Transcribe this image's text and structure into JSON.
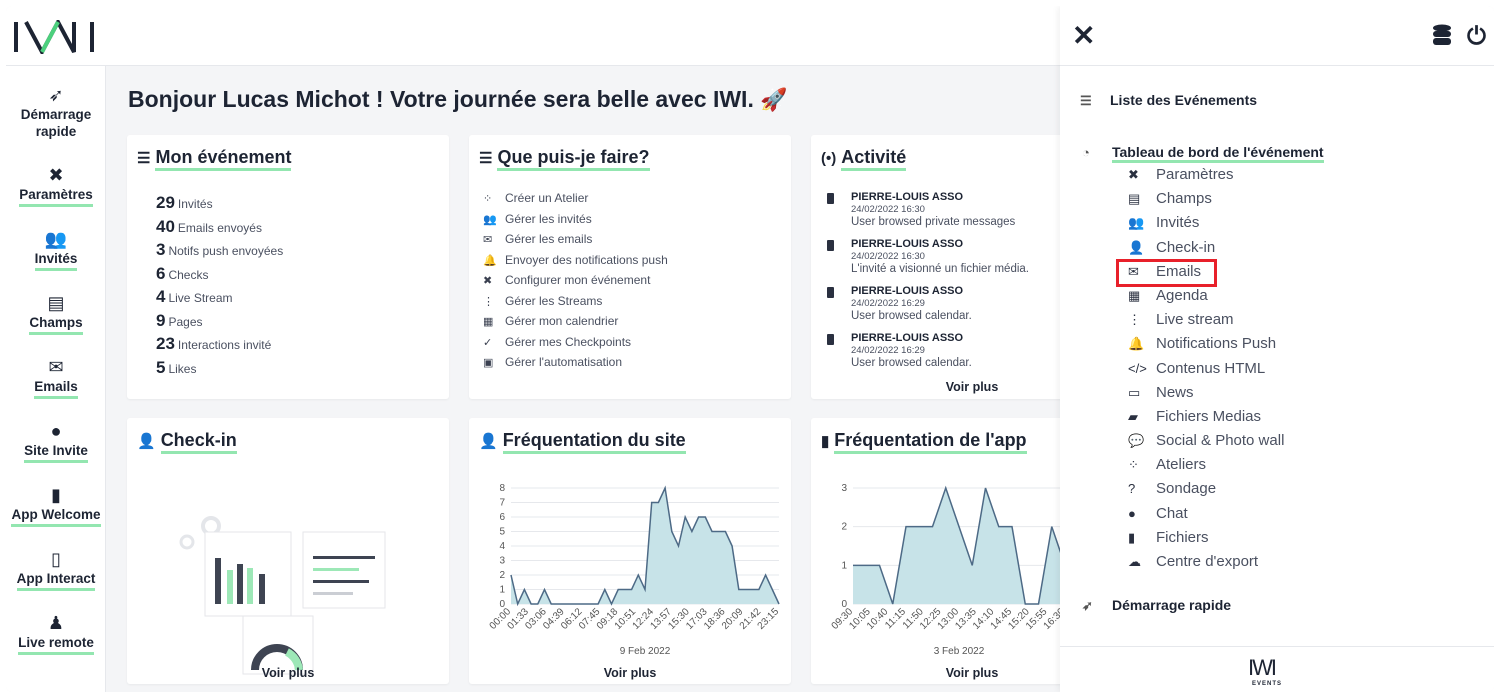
{
  "app": {
    "logo": "IWI",
    "footer_logo": "IWI",
    "footer_sub": "EVENTS"
  },
  "sidebar": {
    "items": [
      {
        "label": "Démarrage rapide",
        "icon": "rocket-icon"
      },
      {
        "label": "Paramètres",
        "icon": "tools-icon"
      },
      {
        "label": "Invités",
        "icon": "users-icon"
      },
      {
        "label": "Champs",
        "icon": "form-icon"
      },
      {
        "label": "Emails",
        "icon": "envelope-icon"
      },
      {
        "label": "Site Invite",
        "icon": "globe-icon"
      },
      {
        "label": "App Welcome",
        "icon": "kiosk-icon"
      },
      {
        "label": "App Interact",
        "icon": "mobile-icon"
      },
      {
        "label": "Live remote",
        "icon": "joystick-icon"
      }
    ]
  },
  "greeting": "Bonjour Lucas Michot ! Votre journée sera belle avec IWI.",
  "mon_evenement": {
    "title": "Mon événement",
    "stats": [
      {
        "n": "29",
        "label": "Invités"
      },
      {
        "n": "40",
        "label": "Emails envoyés"
      },
      {
        "n": "3",
        "label": "Notifs push envoyées"
      },
      {
        "n": "6",
        "label": "Checks"
      },
      {
        "n": "4",
        "label": "Live Stream"
      },
      {
        "n": "9",
        "label": "Pages"
      },
      {
        "n": "23",
        "label": "Interactions invité"
      },
      {
        "n": "5",
        "label": "Likes"
      }
    ]
  },
  "que_faire": {
    "title": "Que puis-je faire?",
    "items": [
      "Créer un Atelier",
      "Gérer les invités",
      "Gérer les emails",
      "Envoyer des notifications push",
      "Configurer mon événement",
      "Gérer les Streams",
      "Gérer mon calendrier",
      "Gérer mes Checkpoints",
      "Gérer l'automatisation"
    ]
  },
  "activite": {
    "title": "Activité",
    "items": [
      {
        "name": "PIERRE-LOUIS ASSO",
        "date": "24/02/2022 16:30",
        "msg": "User browsed private messages"
      },
      {
        "name": "PIERRE-LOUIS ASSO",
        "date": "24/02/2022 16:30",
        "msg": "L'invité a visionné un fichier média."
      },
      {
        "name": "PIERRE-LOUIS ASSO",
        "date": "24/02/2022 16:29",
        "msg": "User browsed calendar."
      },
      {
        "name": "PIERRE-LOUIS ASSO",
        "date": "24/02/2022 16:29",
        "msg": "User browsed calendar."
      }
    ],
    "more": "Voir plus"
  },
  "checkin": {
    "title": "Check-in",
    "more": "Voir plus"
  },
  "site": {
    "title": "Fréquentation du site",
    "more": "Voir plus",
    "date_label": "9 Feb 2022"
  },
  "app_card": {
    "title": "Fréquentation de l'app",
    "more": "Voir plus",
    "date_label": "3 Feb 2022"
  },
  "panel": {
    "list_title": "Liste des Evénements",
    "dashboard_title": "Tableau de bord de l'événement",
    "items": [
      {
        "label": "Paramètres",
        "icon": "tools-icon"
      },
      {
        "label": "Champs",
        "icon": "form-icon"
      },
      {
        "label": "Invités",
        "icon": "users-icon"
      },
      {
        "label": "Check-in",
        "icon": "user-check-icon"
      },
      {
        "label": "Emails",
        "icon": "envelope-icon",
        "highlighted": true
      },
      {
        "label": "Agenda",
        "icon": "calendar-icon"
      },
      {
        "label": "Live stream",
        "icon": "waveform-icon"
      },
      {
        "label": "Notifications Push",
        "icon": "bell-icon"
      },
      {
        "label": "Contenus HTML",
        "icon": "code-icon"
      },
      {
        "label": "News",
        "icon": "newspaper-icon"
      },
      {
        "label": "Fichiers Medias",
        "icon": "folder-icon"
      },
      {
        "label": "Social & Photo wall",
        "icon": "chat-icon"
      },
      {
        "label": "Ateliers",
        "icon": "share-icon"
      },
      {
        "label": "Sondage",
        "icon": "question-icon"
      },
      {
        "label": "Chat",
        "icon": "comment-icon"
      },
      {
        "label": "Fichiers",
        "icon": "file-icon"
      },
      {
        "label": "Centre d'export",
        "icon": "cloud-download-icon"
      }
    ],
    "quick_start": "Démarrage rapide"
  },
  "chart_data": [
    {
      "type": "area",
      "title": "Fréquentation du site",
      "xlabel": "9 Feb 2022",
      "x_ticks": [
        "00:00",
        "01:33",
        "03:06",
        "04:39",
        "06:12",
        "07:45",
        "09:18",
        "10:51",
        "12:24",
        "13:57",
        "15:30",
        "17:03",
        "18:36",
        "20:09",
        "21:42",
        "23:15"
      ],
      "ylim": [
        0,
        8
      ],
      "y_ticks": [
        0,
        1,
        2,
        3,
        4,
        5,
        6,
        7,
        8
      ],
      "values": [
        2,
        0,
        1,
        0,
        0,
        1,
        0,
        0,
        0,
        0,
        0,
        0,
        0,
        0,
        1,
        0,
        1,
        1,
        1,
        2,
        1,
        7,
        7,
        8,
        5,
        4,
        6,
        5,
        6,
        6,
        5,
        5,
        5,
        4,
        1,
        1,
        1,
        1,
        2,
        1,
        0
      ],
      "color": "#c7e3e8",
      "line_color": "#4d6a86"
    },
    {
      "type": "area",
      "title": "Fréquentation de l'app",
      "xlabel": "3 Feb 2022",
      "x_ticks": [
        "09:30",
        "10:05",
        "10:40",
        "11:15",
        "11:50",
        "12:25",
        "13:00",
        "13:35",
        "14:10",
        "14:45",
        "15:20",
        "15:55",
        "16:30"
      ],
      "ylim": [
        0,
        3
      ],
      "y_ticks": [
        0,
        1,
        2,
        3
      ],
      "values": [
        1,
        1,
        1,
        0,
        2,
        2,
        2,
        3,
        2,
        1,
        3,
        2,
        2,
        0,
        0,
        2,
        1
      ],
      "color": "#c7e3e8",
      "line_color": "#4d6a86"
    }
  ]
}
